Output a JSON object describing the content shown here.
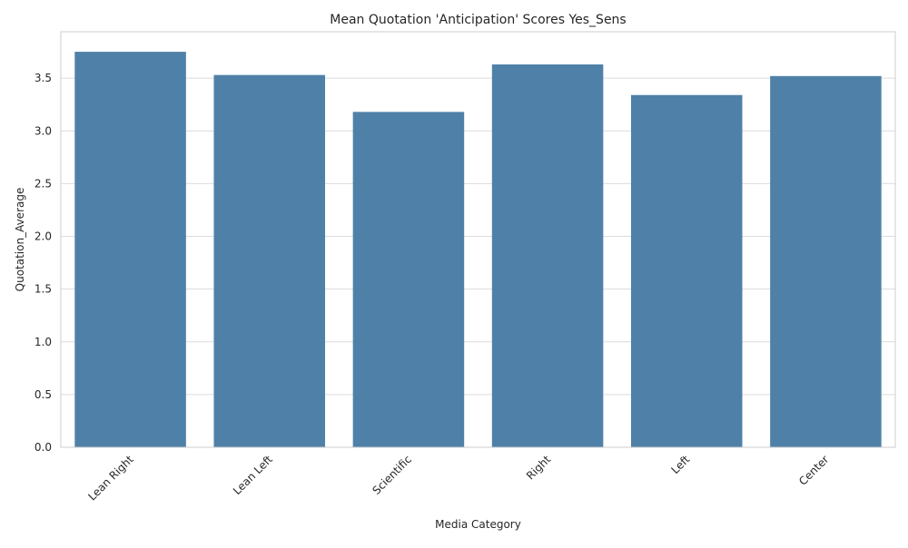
{
  "chart_data": {
    "type": "bar",
    "title": "Mean Quotation 'Anticipation' Scores Yes_Sens",
    "xlabel": "Media Category",
    "ylabel": "Quotation_Average",
    "categories": [
      "Lean Right",
      "Lean Left",
      "Scientific",
      "Right",
      "Left",
      "Center"
    ],
    "values": [
      3.75,
      3.53,
      3.18,
      3.63,
      3.34,
      3.52
    ],
    "ylim": [
      0,
      3.94
    ],
    "yticks": [
      "0.0",
      "0.5",
      "1.0",
      "1.5",
      "2.0",
      "2.5",
      "3.0",
      "3.5"
    ],
    "grid": "horizontal",
    "bar_color": "#4f81a8",
    "grid_color": "#dcdcdc",
    "axes_edge_color": "#cccccc"
  }
}
